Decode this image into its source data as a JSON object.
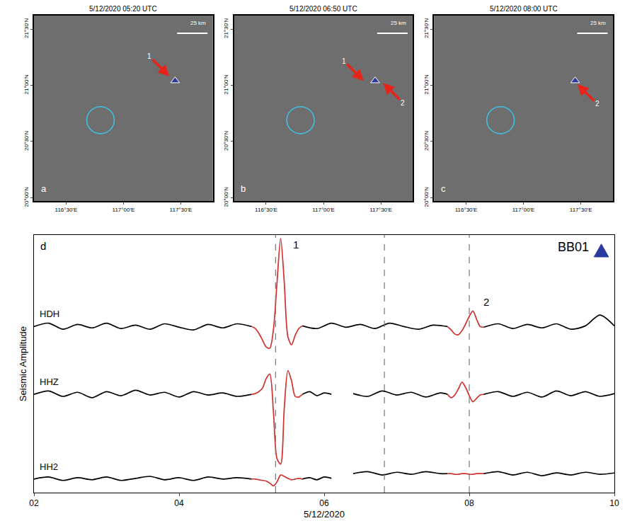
{
  "chart_data": [
    {
      "type": "map",
      "panel": "a",
      "title": "5/12/2020 05:20 UTC",
      "xlim": [
        116.22,
        117.78
      ],
      "ylim": [
        19.97,
        21.62
      ],
      "xticks": [
        {
          "value": 116.5,
          "label": "116°30'E"
        },
        {
          "value": 117.0,
          "label": "117°00'E"
        },
        {
          "value": 117.5,
          "label": "117°30'E"
        }
      ],
      "yticks": [
        {
          "value": 20.0,
          "label": "20°00'N"
        },
        {
          "value": 20.5,
          "label": "20°30'N"
        },
        {
          "value": 21.0,
          "label": "21°00'N"
        },
        {
          "value": 21.5,
          "label": "21°30'N"
        }
      ],
      "scale_bar": "25 km",
      "station": {
        "lon": 117.45,
        "lat": 21.04
      },
      "eddy": {
        "lon": 116.8,
        "lat": 20.69,
        "radius": 0.12
      },
      "arrows": [
        {
          "label": "1",
          "lon": 117.4,
          "lat": 21.08,
          "direction": "southeast"
        }
      ]
    },
    {
      "type": "map",
      "panel": "b",
      "title": "5/12/2020 06:50 UTC",
      "xlim": [
        116.22,
        117.78
      ],
      "ylim": [
        19.97,
        21.62
      ],
      "xticks": [
        {
          "value": 116.5,
          "label": "116°30'E"
        },
        {
          "value": 117.0,
          "label": "117°00'E"
        },
        {
          "value": 117.5,
          "label": "117°30'E"
        }
      ],
      "yticks": [
        {
          "value": 20.0,
          "label": "20°00'N"
        },
        {
          "value": 20.5,
          "label": "20°30'N"
        },
        {
          "value": 21.0,
          "label": "21°00'N"
        },
        {
          "value": 21.5,
          "label": "21°30'N"
        }
      ],
      "scale_bar": "25 km",
      "station": {
        "lon": 117.45,
        "lat": 21.04
      },
      "eddy": {
        "lon": 116.8,
        "lat": 20.69,
        "radius": 0.12
      },
      "arrows": [
        {
          "label": "1",
          "lon": 117.35,
          "lat": 21.04,
          "direction": "southeast"
        },
        {
          "label": "2",
          "lon": 117.52,
          "lat": 21.02,
          "direction": "northwest"
        }
      ]
    },
    {
      "type": "map",
      "panel": "c",
      "title": "5/12/2020 08:00 UTC",
      "xlim": [
        116.22,
        117.78
      ],
      "ylim": [
        19.97,
        21.62
      ],
      "xticks": [
        {
          "value": 116.5,
          "label": "116°30'E"
        },
        {
          "value": 117.0,
          "label": "117°00'E"
        },
        {
          "value": 117.5,
          "label": "117°30'E"
        }
      ],
      "yticks": [
        {
          "value": 20.0,
          "label": "20°00'N"
        },
        {
          "value": 20.5,
          "label": "20°30'N"
        },
        {
          "value": 21.0,
          "label": "21°00'N"
        },
        {
          "value": 21.5,
          "label": "21°30'N"
        }
      ],
      "scale_bar": "25 km",
      "station": {
        "lon": 117.45,
        "lat": 21.04
      },
      "eddy": {
        "lon": 116.8,
        "lat": 20.69,
        "radius": 0.12
      },
      "arrows": [
        {
          "label": "2",
          "lon": 117.47,
          "lat": 21.01,
          "direction": "northwest"
        }
      ]
    },
    {
      "type": "line",
      "panel": "d",
      "station_label": "BB01",
      "x_label": "5/12/2020",
      "y_label": "Seismic Amplitude",
      "xlim": [
        2,
        10
      ],
      "xticks": [
        {
          "value": 2,
          "label": "02"
        },
        {
          "value": 4,
          "label": "04"
        },
        {
          "value": 6,
          "label": "06"
        },
        {
          "value": 8,
          "label": "08"
        },
        {
          "value": 10,
          "label": "10"
        }
      ],
      "ylim": [
        0,
        38
      ],
      "tick_labels": "x",
      "vlines": [
        5.33,
        6.83,
        8.0
      ],
      "annotations": [
        {
          "text": "1",
          "x": 5.55,
          "y": 35.5
        },
        {
          "text": "2",
          "x": 8.18,
          "y": 27.0
        }
      ],
      "series": [
        {
          "name": "HDH",
          "color": "#000000",
          "x": [
            2.0,
            2.2,
            2.4,
            2.6,
            2.8,
            3.0,
            3.2,
            3.4,
            3.6,
            3.8,
            4.0,
            4.2,
            4.4,
            4.6,
            4.8,
            5.0
          ],
          "values": [
            24.5,
            25.0,
            24.1,
            24.8,
            24.3,
            25.0,
            24.2,
            24.7,
            24.1,
            24.9,
            24.4,
            24.0,
            24.8,
            24.3,
            24.9,
            24.5
          ]
        },
        {
          "name": "HDH",
          "color": "#d0312d",
          "x": [
            5.0,
            5.05,
            5.1,
            5.15,
            5.2,
            5.25,
            5.3,
            5.35,
            5.4,
            5.45,
            5.5,
            5.55,
            5.6,
            5.65,
            5.7
          ],
          "values": [
            24.5,
            24.2,
            23.5,
            22.5,
            21.5,
            21.3,
            24.0,
            31.0,
            37.5,
            31.0,
            23.0,
            21.8,
            23.2,
            24.2,
            24.6
          ]
        },
        {
          "name": "HDH",
          "color": "#000000",
          "x": [
            5.7,
            5.9,
            6.1,
            6.3,
            6.5,
            6.7,
            6.9,
            7.1,
            7.3,
            7.5,
            7.7
          ],
          "values": [
            24.6,
            24.2,
            25.0,
            24.4,
            24.8,
            24.2,
            25.0,
            24.5,
            24.1,
            24.7,
            24.5
          ]
        },
        {
          "name": "HDH",
          "color": "#d0312d",
          "x": [
            7.7,
            7.75,
            7.8,
            7.85,
            7.9,
            7.95,
            8.0,
            8.05,
            8.1,
            8.15,
            8.2
          ],
          "values": [
            24.5,
            24.0,
            23.4,
            23.3,
            23.9,
            24.9,
            26.0,
            26.8,
            25.6,
            24.5,
            24.4
          ]
        },
        {
          "name": "HDH",
          "color": "#000000",
          "x": [
            8.2,
            8.4,
            8.6,
            8.8,
            9.0,
            9.2,
            9.4,
            9.6,
            9.8,
            10.0
          ],
          "values": [
            24.4,
            24.9,
            24.2,
            24.8,
            24.3,
            24.9,
            24.1,
            24.6,
            26.2,
            24.6
          ]
        },
        {
          "name": "HHZ",
          "color": "#000000",
          "x": [
            2.0,
            2.2,
            2.4,
            2.6,
            2.8,
            3.0,
            3.2,
            3.4,
            3.6,
            3.8,
            4.0,
            4.2,
            4.4,
            4.6,
            4.8,
            5.0
          ],
          "values": [
            14.5,
            15.0,
            14.2,
            14.8,
            14.0,
            14.9,
            14.3,
            15.1,
            14.4,
            14.8,
            14.1,
            14.9,
            14.4,
            14.7,
            14.2,
            14.5
          ]
        },
        {
          "name": "HHZ",
          "color": "#d0312d",
          "x": [
            5.0,
            5.05,
            5.1,
            5.15,
            5.2,
            5.25,
            5.3,
            5.35,
            5.4,
            5.45,
            5.5,
            5.55,
            5.6,
            5.65,
            5.7
          ],
          "values": [
            14.5,
            14.6,
            14.9,
            15.4,
            16.8,
            17.5,
            12.0,
            5.0,
            4.2,
            12.5,
            18.0,
            16.5,
            14.2,
            14.1,
            14.5
          ]
        },
        {
          "name": "HHZ",
          "color": "#000000",
          "x": [
            5.7,
            5.8,
            5.9,
            6.0,
            6.1
          ],
          "values": [
            14.5,
            14.9,
            14.3,
            14.7,
            14.5
          ]
        },
        {
          "name": "HHZ",
          "color": "#000000",
          "x": [
            6.4,
            6.6,
            6.8,
            7.0,
            7.2,
            7.4,
            7.6,
            7.7
          ],
          "values": [
            14.6,
            14.2,
            15.0,
            14.4,
            14.8,
            14.1,
            14.7,
            14.5
          ]
        },
        {
          "name": "HHZ",
          "color": "#d0312d",
          "x": [
            7.7,
            7.75,
            7.8,
            7.85,
            7.9,
            7.95,
            8.0,
            8.05,
            8.1,
            8.15,
            8.2
          ],
          "values": [
            14.5,
            14.0,
            14.4,
            15.3,
            16.3,
            15.5,
            14.3,
            13.4,
            13.9,
            14.4,
            14.5
          ]
        },
        {
          "name": "HHZ",
          "color": "#000000",
          "x": [
            8.2,
            8.4,
            8.6,
            8.8,
            9.0,
            9.2,
            9.4,
            9.6,
            9.8,
            10.0
          ],
          "values": [
            14.5,
            14.9,
            14.2,
            14.8,
            14.1,
            15.0,
            14.3,
            14.9,
            14.2,
            14.6
          ]
        },
        {
          "name": "HH2",
          "color": "#000000",
          "x": [
            2.0,
            2.2,
            2.4,
            2.6,
            2.8,
            3.0,
            3.2,
            3.4,
            3.6,
            3.8,
            4.0,
            4.2,
            4.4,
            4.6,
            4.8,
            5.0
          ],
          "values": [
            2.0,
            2.3,
            1.8,
            2.2,
            1.9,
            2.3,
            1.8,
            2.1,
            2.4,
            1.9,
            2.2,
            1.8,
            2.3,
            2.0,
            2.2,
            2.0
          ]
        },
        {
          "name": "HH2",
          "color": "#d0312d",
          "x": [
            5.0,
            5.05,
            5.1,
            5.15,
            5.2,
            5.25,
            5.3,
            5.35,
            5.4,
            5.45,
            5.5,
            5.55,
            5.6,
            5.65,
            5.7
          ],
          "values": [
            2.0,
            2.0,
            1.9,
            1.8,
            1.7,
            1.4,
            1.0,
            1.6,
            2.6,
            2.4,
            2.1,
            1.9,
            2.0,
            2.1,
            2.0
          ]
        },
        {
          "name": "HH2",
          "color": "#000000",
          "x": [
            5.7,
            5.8,
            5.9,
            6.0,
            6.1
          ],
          "values": [
            2.0,
            2.2,
            1.9,
            2.3,
            2.1
          ]
        },
        {
          "name": "HH2",
          "color": "#000000",
          "x": [
            6.4,
            6.6,
            6.8,
            7.0,
            7.2,
            7.4,
            7.6,
            7.7
          ],
          "values": [
            2.8,
            3.1,
            2.6,
            3.0,
            2.7,
            3.1,
            2.8,
            2.8
          ]
        },
        {
          "name": "HH2",
          "color": "#d0312d",
          "x": [
            7.7,
            7.75,
            7.8,
            7.85,
            7.9,
            7.95,
            8.0,
            8.05,
            8.1,
            8.15,
            8.2
          ],
          "values": [
            2.8,
            2.8,
            2.7,
            2.7,
            2.8,
            2.8,
            2.7,
            2.7,
            2.8,
            2.8,
            2.8
          ]
        },
        {
          "name": "HH2",
          "color": "#000000",
          "x": [
            8.2,
            8.4,
            8.6,
            8.8,
            9.0,
            9.2,
            9.4,
            9.6,
            9.8,
            10.0
          ],
          "values": [
            2.8,
            3.1,
            2.6,
            3.0,
            2.5,
            2.9,
            2.6,
            3.0,
            2.7,
            2.9
          ]
        }
      ]
    }
  ]
}
